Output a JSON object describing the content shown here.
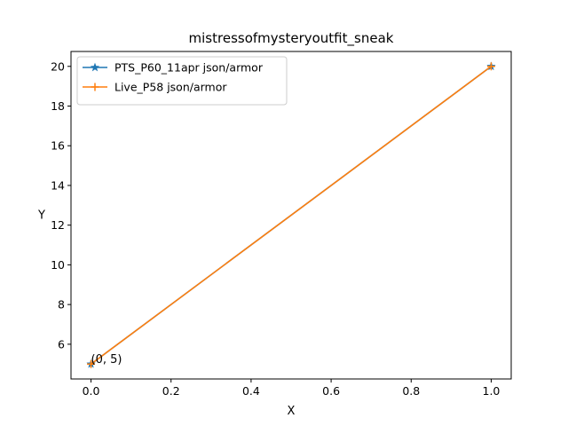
{
  "chart_data": {
    "type": "line",
    "title": "mistressofmysteryoutfit_sneak",
    "xlabel": "X",
    "ylabel": "Y",
    "xlim": [
      -0.05,
      1.05
    ],
    "ylim": [
      4.25,
      20.75
    ],
    "xticks": [
      0.0,
      0.2,
      0.4,
      0.6,
      0.8,
      1.0
    ],
    "xtick_labels": [
      "0.0",
      "0.2",
      "0.4",
      "0.6",
      "0.8",
      "1.0"
    ],
    "yticks": [
      6,
      8,
      10,
      12,
      14,
      16,
      18,
      20
    ],
    "ytick_labels": [
      "6",
      "8",
      "10",
      "12",
      "14",
      "16",
      "18",
      "20"
    ],
    "grid": false,
    "legend_position": "top-left",
    "series": [
      {
        "name": "PTS_P60_11apr json/armor",
        "x": [
          0,
          1
        ],
        "y": [
          5,
          20
        ],
        "color": "#1f77b4",
        "marker": "star"
      },
      {
        "name": "Live_P58 json/armor",
        "x": [
          0,
          1
        ],
        "y": [
          5,
          20
        ],
        "color": "#ff7f0e",
        "marker": "plus"
      }
    ],
    "annotations": [
      {
        "text": "(0, 5)",
        "x": 0,
        "y": 5
      }
    ]
  }
}
